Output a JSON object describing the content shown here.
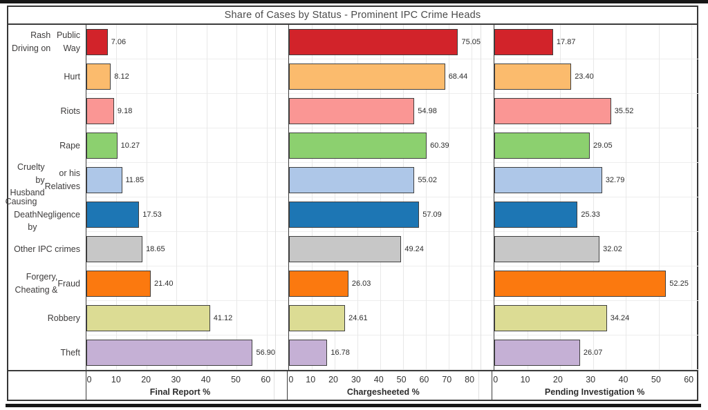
{
  "title": "Share of Cases by Status - Prominent IPC Crime Heads",
  "chart_data": {
    "type": "bar",
    "orientation": "horizontal",
    "grid": true,
    "categories": [
      "Rash Driving on Public Way",
      "Hurt",
      "Riots",
      "Rape",
      "Cruelty by Husband or his Relatives",
      "Causing Death by Negligence",
      "Other IPC crimes",
      "Forgery, Cheating & Fraud",
      "Robbery",
      "Theft"
    ],
    "category_lines": [
      [
        "Rash Driving on",
        "Public Way"
      ],
      [
        "Hurt"
      ],
      [
        "Riots"
      ],
      [
        "Rape"
      ],
      [
        "Cruelty by Husband",
        "or his Relatives"
      ],
      [
        "Causing Death by",
        "Negligence"
      ],
      [
        "Other IPC crimes"
      ],
      [
        "Forgery, Cheating &",
        "Fraud"
      ],
      [
        "Robbery"
      ],
      [
        "Theft"
      ]
    ],
    "bar_colors": [
      "#d2232a",
      "#fbbb6d",
      "#fa9694",
      "#8cd06f",
      "#aec7e8",
      "#1d76b4",
      "#c7c7c7",
      "#fb790f",
      "#dcdc94",
      "#c5b0d5"
    ],
    "panels": [
      {
        "name": "Final Report %",
        "values": [
          7.06,
          8.12,
          9.18,
          10.27,
          11.85,
          17.53,
          18.65,
          21.4,
          41.12,
          56.9
        ],
        "value_labels": [
          "7.06",
          "8.12",
          "9.18",
          "10.27",
          "11.85",
          "17.53",
          "18.65",
          "21.40",
          "41.12",
          "56.90"
        ],
        "ticks": [
          0,
          10,
          20,
          30,
          40,
          50,
          60
        ],
        "xlim": [
          0,
          62.8
        ]
      },
      {
        "name": "Chargesheeted %",
        "values": [
          75.05,
          68.44,
          54.98,
          60.39,
          55.02,
          57.09,
          49.24,
          26.03,
          24.61,
          16.78
        ],
        "value_labels": [
          "75.05",
          "68.44",
          "54.98",
          "60.39",
          "55.02",
          "57.09",
          "49.24",
          "26.03",
          "24.61",
          "16.78"
        ],
        "ticks": [
          0,
          10,
          20,
          30,
          40,
          50,
          60,
          70,
          80
        ],
        "xlim": [
          0,
          84.0
        ]
      },
      {
        "name": "Pending Investigation %",
        "values": [
          17.87,
          23.4,
          35.52,
          29.05,
          32.79,
          25.33,
          32.02,
          52.25,
          34.24,
          26.07
        ],
        "value_labels": [
          "17.87",
          "23.40",
          "35.52",
          "29.05",
          "32.79",
          "25.33",
          "32.02",
          "52.25",
          "34.24",
          "26.07"
        ],
        "ticks": [
          0,
          10,
          20,
          30,
          40,
          50,
          60
        ],
        "xlim": [
          0,
          62.5
        ]
      }
    ]
  }
}
